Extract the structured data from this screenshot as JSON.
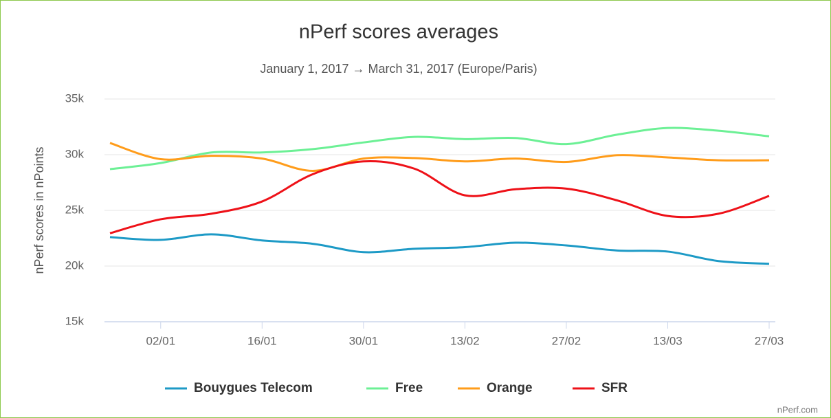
{
  "chart_data": {
    "type": "line",
    "title": "nPerf scores averages",
    "subtitle": "January 1, 2017 → March 31, 2017 (Europe/Paris)",
    "y_label": "nPerf scores in nPoints",
    "credit": "nPerf.com",
    "categories": [
      null,
      "02/01",
      null,
      "16/01",
      null,
      "30/01",
      null,
      "13/02",
      null,
      "27/02",
      null,
      "13/03",
      null,
      "27/03"
    ],
    "ylim": [
      15000,
      35000
    ],
    "yticks": [
      {
        "value": 15000,
        "label": "15k"
      },
      {
        "value": 20000,
        "label": "20k"
      },
      {
        "value": 25000,
        "label": "25k"
      },
      {
        "value": 30000,
        "label": "30k"
      },
      {
        "value": 35000,
        "label": "35k"
      }
    ],
    "grid": true,
    "legend": "bottom",
    "series": [
      {
        "name": "Bouygues Telecom",
        "color": "#1d9ac6",
        "values": [
          22600,
          22350,
          22850,
          22300,
          22000,
          21250,
          21550,
          21700,
          22100,
          21850,
          21400,
          21300,
          20450,
          20200
        ]
      },
      {
        "name": "Free",
        "color": "#6cf095",
        "values": [
          28700,
          29250,
          30200,
          30200,
          30500,
          31100,
          31600,
          31400,
          31500,
          30950,
          31800,
          32400,
          32150,
          31650
        ]
      },
      {
        "name": "Orange",
        "color": "#ff9c1a",
        "values": [
          31050,
          29600,
          29900,
          29650,
          28550,
          29650,
          29700,
          29400,
          29650,
          29350,
          29950,
          29750,
          29500,
          29500
        ]
      },
      {
        "name": "SFR",
        "color": "#ee1118",
        "values": [
          22950,
          24200,
          24700,
          25800,
          28250,
          29400,
          28750,
          26350,
          26900,
          26950,
          25900,
          24500,
          24700,
          26300
        ]
      }
    ]
  }
}
